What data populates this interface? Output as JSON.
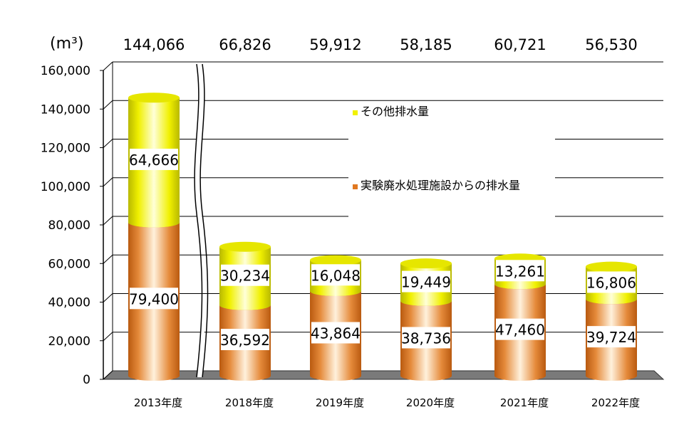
{
  "chart_data": {
    "type": "bar",
    "stacked": true,
    "unit_label": "(m³)",
    "ylim": [
      0,
      160000
    ],
    "y_ticks": [
      "0",
      "20,000",
      "40,000",
      "60,000",
      "80,000",
      "100,000",
      "120,000",
      "140,000",
      "160,000"
    ],
    "y_tick_values": [
      0,
      20000,
      40000,
      60000,
      80000,
      100000,
      120000,
      140000,
      160000
    ],
    "axis_break_after_category": 0,
    "grid": true,
    "legend_position": "inside-right",
    "categories": [
      "2013年度",
      "2018年度",
      "2019年度",
      "2020年度",
      "2021年度",
      "2022年度"
    ],
    "totals": [
      "144,066",
      "66,826",
      "59,912",
      "58,185",
      "60,721",
      "56,530"
    ],
    "series": [
      {
        "name": "実験廃水処理施設からの排水量",
        "color": "#e07820",
        "values": [
          79400,
          36592,
          43864,
          38736,
          47460,
          39724
        ],
        "labels": [
          "79,400",
          "36,592",
          "43,864",
          "38,736",
          "47,460",
          "39,724"
        ]
      },
      {
        "name": "その他排水量",
        "color": "#f2f200",
        "values": [
          64666,
          30234,
          16048,
          19449,
          13261,
          16806
        ],
        "labels": [
          "64,666",
          "30,234",
          "16,048",
          "19,449",
          "13,261",
          "16,806"
        ]
      }
    ]
  }
}
